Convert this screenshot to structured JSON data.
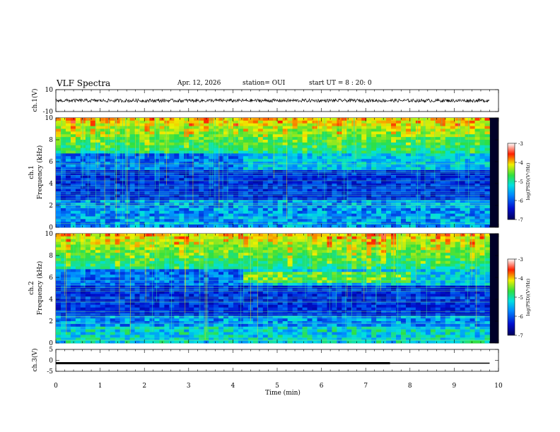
{
  "header": {
    "title": "VLF Spectra",
    "date": "Apr. 12, 2026",
    "station": "station= OUI",
    "start_ut": "start  UT =  8 : 20: 0"
  },
  "chart_data": [
    {
      "type": "line",
      "panel": "ch1-waveform",
      "ylabel": "ch.1(V)",
      "ylim": [
        -10,
        10
      ],
      "yticks": [
        "10",
        "-10"
      ],
      "xlim": [
        0,
        9.8
      ]
    },
    {
      "type": "heatmap",
      "panel": "ch1-spectrogram",
      "ylabel_line1": "ch.1",
      "ylabel_line2": "Frequency (kHz)",
      "ylim": [
        0,
        10
      ],
      "yticks": [
        "0",
        "2",
        "4",
        "6",
        "8",
        "10"
      ],
      "colorbar": {
        "label": "log(PSD)(V²/Hz)",
        "range": [
          -7,
          -3
        ],
        "ticks": [
          "-3",
          "-4",
          "-5",
          "-6",
          "-7"
        ]
      }
    },
    {
      "type": "heatmap",
      "panel": "ch2-spectrogram",
      "ylabel_line1": "ch.2",
      "ylabel_line2": "Frequency (kHz)",
      "ylim": [
        0,
        10
      ],
      "yticks": [
        "0",
        "2",
        "4",
        "6",
        "8",
        "10"
      ],
      "colorbar": {
        "label": "log(PSD)(V²/Hz)",
        "range": [
          -7,
          -3
        ],
        "ticks": [
          "-3",
          "-4",
          "-5",
          "-6",
          "-7"
        ]
      }
    },
    {
      "type": "line",
      "panel": "ch3-level",
      "ylabel": "ch.3(V)",
      "ylim": [
        -5,
        5
      ],
      "yticks": [
        "5",
        "0",
        "-5"
      ],
      "segments": [
        {
          "x0": 0,
          "x1": 7.55,
          "y": -1.3
        },
        {
          "x0": 7.55,
          "x1": 9.8,
          "y": -1.3
        }
      ]
    }
  ],
  "xaxis": {
    "label": "Time (min)",
    "range": [
      0,
      10
    ],
    "ticks": [
      "0",
      "1",
      "2",
      "3",
      "4",
      "5",
      "6",
      "7",
      "8",
      "9",
      "10"
    ]
  }
}
